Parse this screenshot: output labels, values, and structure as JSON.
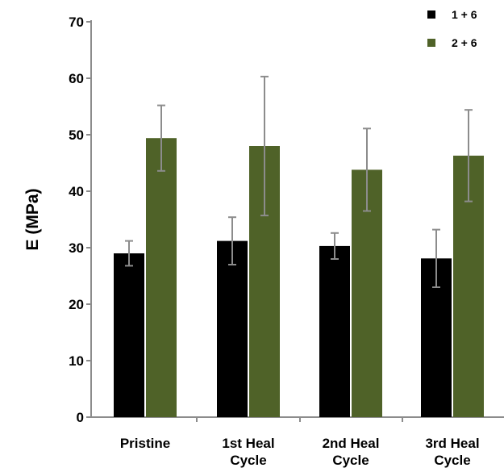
{
  "chart_data": {
    "type": "bar",
    "ylabel": "E (MPa)",
    "xlabel": "",
    "ylim": [
      0,
      70
    ],
    "yticks": [
      0,
      10,
      20,
      30,
      40,
      50,
      60,
      70
    ],
    "categories": [
      [
        "Pristine"
      ],
      [
        "1st Heal",
        "Cycle"
      ],
      [
        "2nd Heal",
        "Cycle"
      ],
      [
        "3rd Heal",
        "Cycle"
      ]
    ],
    "series": [
      {
        "name": "1 + 6",
        "color": "#000000",
        "values": [
          29.0,
          31.2,
          30.3,
          28.1
        ],
        "errors": [
          2.2,
          4.2,
          2.3,
          5.1
        ]
      },
      {
        "name": "2 + 6",
        "color": "#4f6228",
        "values": [
          49.4,
          48.0,
          43.8,
          46.3
        ],
        "errors": [
          5.8,
          12.3,
          7.3,
          8.1
        ]
      }
    ],
    "error_bar_color": "#8c8c8c",
    "legend_position": "top-right",
    "grid": false
  }
}
